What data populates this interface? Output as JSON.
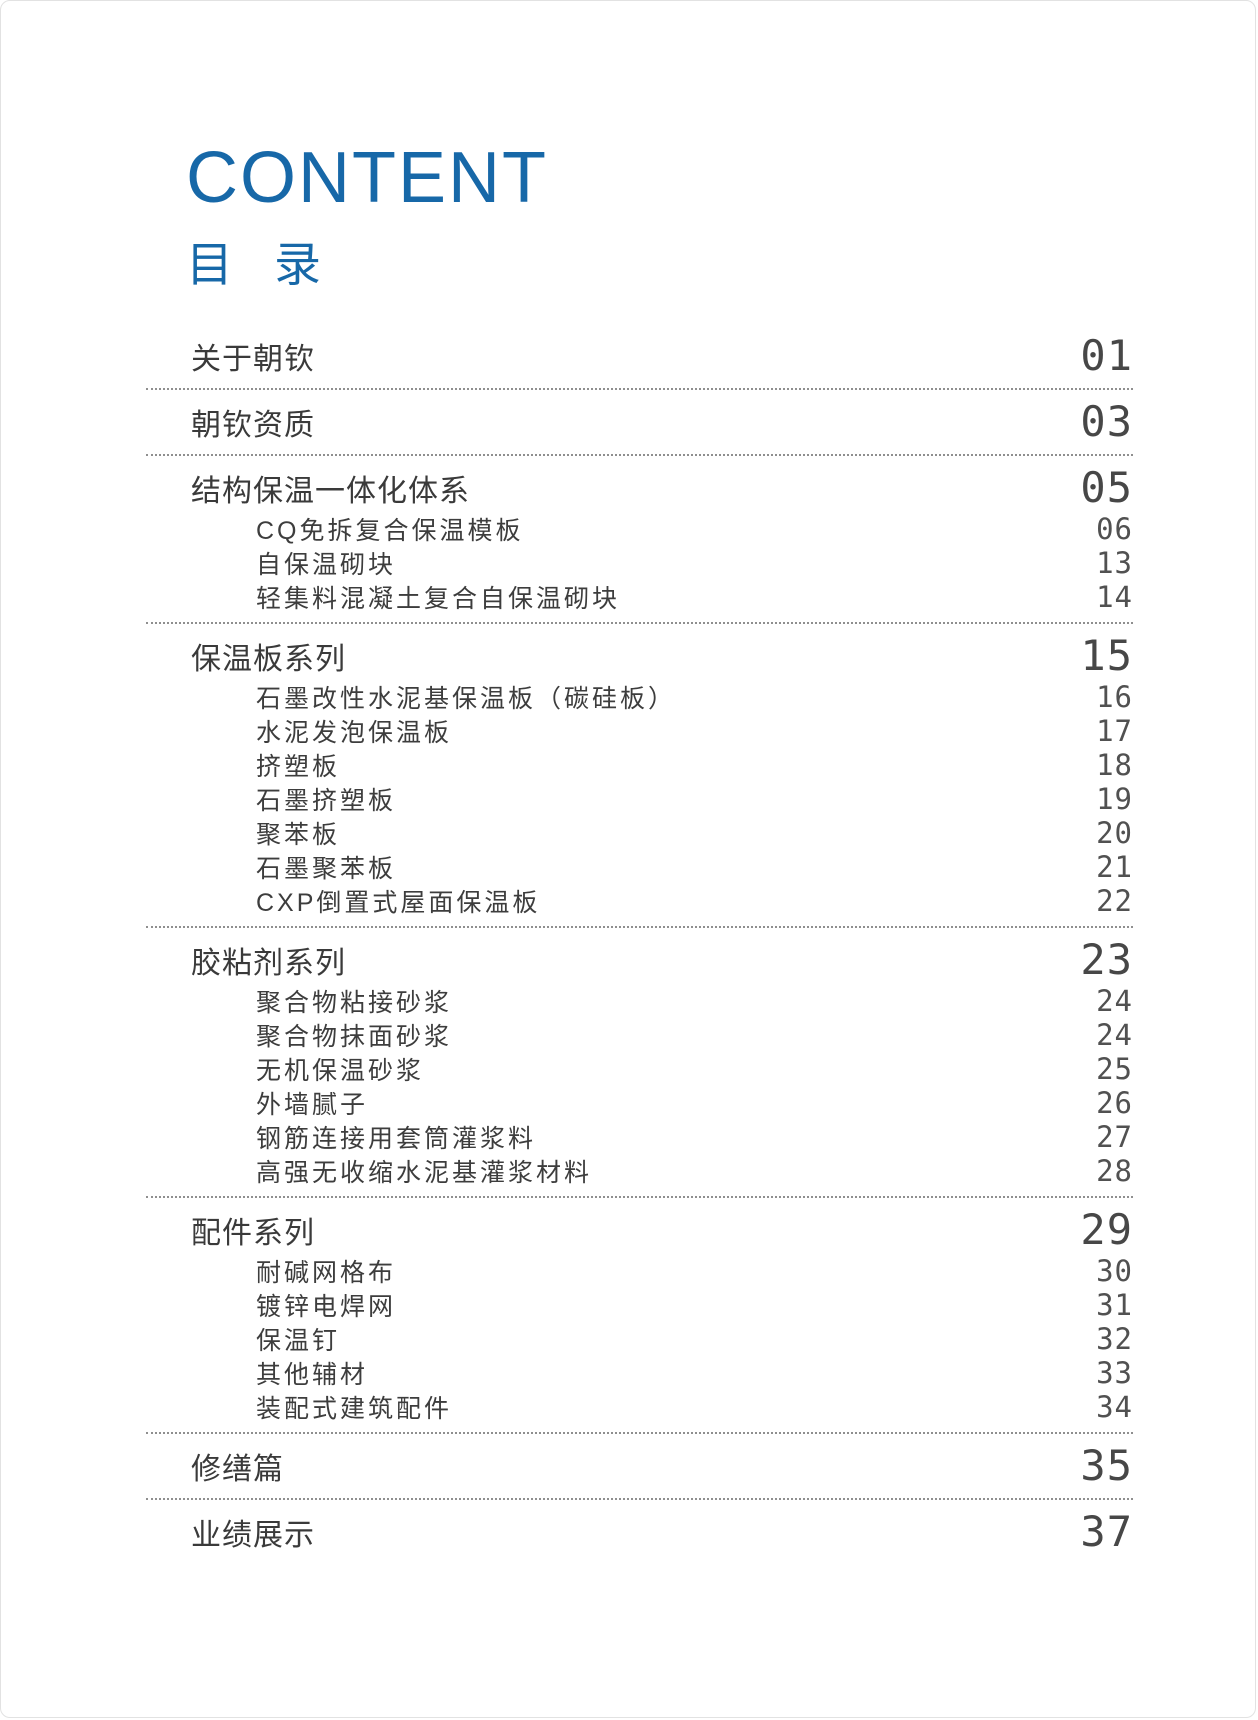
{
  "page": {
    "title_en": "CONTENT",
    "title_zh": "目 录",
    "accent_color": "#1768a8",
    "divider_color": "#8f8f8f"
  },
  "toc": {
    "sections": [
      {
        "label": "关于朝钦",
        "page": "01",
        "items": []
      },
      {
        "label": "朝钦资质",
        "page": "03",
        "items": []
      },
      {
        "label": "结构保温一体化体系",
        "page": "05",
        "items": [
          {
            "label": "CQ免拆复合保温模板",
            "page": "06"
          },
          {
            "label": "自保温砌块",
            "page": "13"
          },
          {
            "label": "轻集料混凝土复合自保温砌块",
            "page": "14"
          }
        ]
      },
      {
        "label": "保温板系列",
        "page": "15",
        "items": [
          {
            "label": "石墨改性水泥基保温板（碳硅板）",
            "page": "16"
          },
          {
            "label": "水泥发泡保温板",
            "page": "17"
          },
          {
            "label": "挤塑板",
            "page": "18"
          },
          {
            "label": "石墨挤塑板",
            "page": "19"
          },
          {
            "label": "聚苯板",
            "page": "20"
          },
          {
            "label": "石墨聚苯板",
            "page": "21"
          },
          {
            "label": "CXP倒置式屋面保温板",
            "page": "22"
          }
        ]
      },
      {
        "label": "胶粘剂系列",
        "page": "23",
        "items": [
          {
            "label": "聚合物粘接砂浆",
            "page": "24"
          },
          {
            "label": "聚合物抹面砂浆",
            "page": "24"
          },
          {
            "label": "无机保温砂浆",
            "page": "25"
          },
          {
            "label": "外墙腻子",
            "page": "26"
          },
          {
            "label": "钢筋连接用套筒灌浆料",
            "page": "27"
          },
          {
            "label": "高强无收缩水泥基灌浆材料",
            "page": "28"
          }
        ]
      },
      {
        "label": "配件系列",
        "page": "29",
        "items": [
          {
            "label": "耐碱网格布",
            "page": "30"
          },
          {
            "label": "镀锌电焊网",
            "page": "31"
          },
          {
            "label": "保温钉",
            "page": "32"
          },
          {
            "label": "其他辅材",
            "page": "33"
          },
          {
            "label": "装配式建筑配件",
            "page": "34"
          }
        ]
      },
      {
        "label": "修缮篇",
        "page": "35",
        "items": []
      },
      {
        "label": "业绩展示",
        "page": "37",
        "items": []
      }
    ]
  }
}
